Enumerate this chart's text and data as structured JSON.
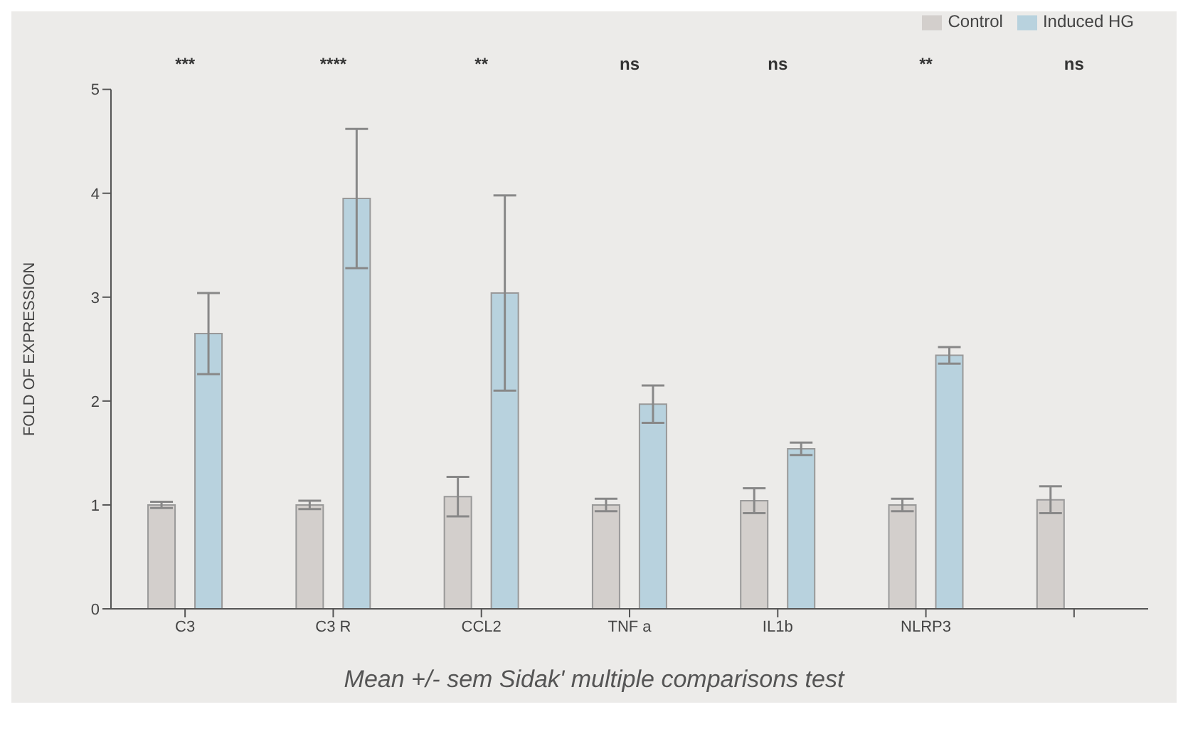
{
  "chart_data": {
    "type": "bar",
    "ylabel": "FOLD OF EXPRESSION",
    "categories": [
      "C3",
      "C3 R",
      "CCL2",
      "TNF a",
      "IL1b",
      "NLRP3",
      null
    ],
    "series": [
      {
        "name": "Control",
        "color": "#d3cfcc",
        "values": [
          1.0,
          1.0,
          1.08,
          1.0,
          1.04,
          1.0,
          1.05
        ],
        "errors": [
          0.03,
          0.04,
          0.19,
          0.06,
          0.12,
          0.06,
          0.13
        ]
      },
      {
        "name": "Induced HG",
        "color": "#b8d2de",
        "values": [
          2.65,
          3.95,
          3.04,
          1.97,
          1.54,
          2.44,
          null
        ],
        "errors": [
          0.39,
          0.67,
          0.94,
          0.18,
          0.06,
          0.08,
          null
        ]
      }
    ],
    "ylim": [
      0,
      5
    ],
    "yticks": [
      0,
      1,
      2,
      3,
      4,
      5
    ],
    "legend": "top right",
    "annotations": [
      "***",
      "****",
      "**",
      "ns",
      "ns",
      "**",
      "ns",
      "Mean +/- sem Sidak' multiple comparisons test"
    ]
  }
}
